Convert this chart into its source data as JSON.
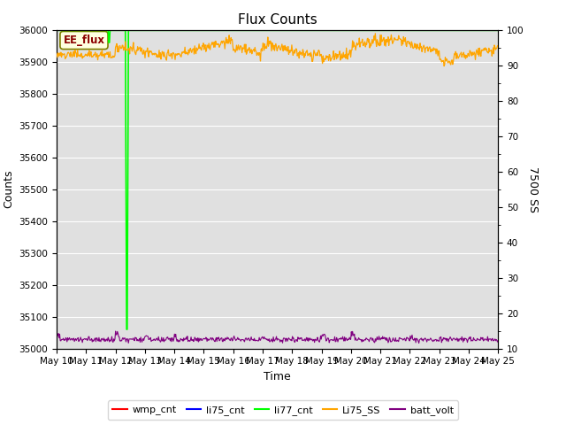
{
  "title": "Flux Counts",
  "xlabel": "Time",
  "ylabel_left": "Counts",
  "ylabel_right": "7500 SS",
  "ylim_left": [
    35000,
    36000
  ],
  "ylim_right": [
    10,
    100
  ],
  "yticks_left": [
    35000,
    35100,
    35200,
    35300,
    35400,
    35500,
    35600,
    35700,
    35800,
    35900,
    36000
  ],
  "yticks_right_values": [
    10,
    20,
    30,
    40,
    50,
    60,
    70,
    80,
    90,
    100
  ],
  "xtick_labels": [
    "May 10",
    "May 11",
    "May 12",
    "May 13",
    "May 14",
    "May 15",
    "May 16",
    "May 17",
    "May 18",
    "May 19",
    "May 20",
    "May 21",
    "May 22",
    "May 23",
    "May 24",
    "May 25"
  ],
  "annotation_text": "EE_flux",
  "bg_color": "#e0e0e0",
  "legend_entries": [
    {
      "label": "wmp_cnt",
      "color": "red"
    },
    {
      "label": "li75_cnt",
      "color": "blue"
    },
    {
      "label": "li77_cnt",
      "color": "lime"
    },
    {
      "label": "Li75_SS",
      "color": "orange"
    },
    {
      "label": "batt_volt",
      "color": "purple"
    }
  ],
  "title_fontsize": 11,
  "axis_label_fontsize": 9,
  "tick_fontsize": 7.5
}
